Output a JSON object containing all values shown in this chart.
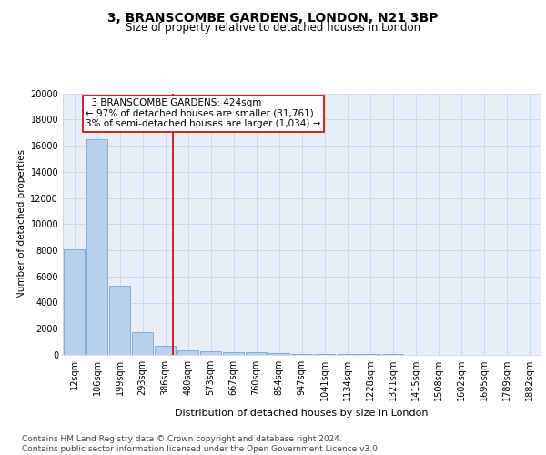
{
  "title": "3, BRANSCOMBE GARDENS, LONDON, N21 3BP",
  "subtitle": "Size of property relative to detached houses in London",
  "xlabel": "Distribution of detached houses by size in London",
  "ylabel": "Number of detached properties",
  "categories": [
    "12sqm",
    "106sqm",
    "199sqm",
    "293sqm",
    "386sqm",
    "480sqm",
    "573sqm",
    "667sqm",
    "760sqm",
    "854sqm",
    "947sqm",
    "1041sqm",
    "1134sqm",
    "1228sqm",
    "1321sqm",
    "1415sqm",
    "1508sqm",
    "1602sqm",
    "1695sqm",
    "1789sqm",
    "1882sqm"
  ],
  "values": [
    8050,
    16500,
    5300,
    1750,
    700,
    370,
    280,
    230,
    190,
    130,
    100,
    80,
    60,
    50,
    40,
    30,
    25,
    20,
    15,
    12,
    10
  ],
  "bar_color": "#b8d0ea",
  "bar_edge_color": "#6699cc",
  "grid_color": "#d0d8e8",
  "background_color": "#e8eef8",
  "vline_x": 4.35,
  "vline_color": "#cc0000",
  "annotation_text": "  3 BRANSCOMBE GARDENS: 424sqm\n← 97% of detached houses are smaller (31,761)\n3% of semi-detached houses are larger (1,034) →",
  "annotation_box_color": "#cc0000",
  "annotation_fill": "#ffffff",
  "ylim": [
    0,
    20000
  ],
  "yticks": [
    0,
    2000,
    4000,
    6000,
    8000,
    10000,
    12000,
    14000,
    16000,
    18000,
    20000
  ],
  "footer_text": "Contains HM Land Registry data © Crown copyright and database right 2024.\nContains public sector information licensed under the Open Government Licence v3.0.",
  "title_fontsize": 10,
  "subtitle_fontsize": 8.5,
  "axis_label_fontsize": 7.5,
  "tick_fontsize": 7,
  "annotation_fontsize": 7.5,
  "footer_fontsize": 6.5
}
